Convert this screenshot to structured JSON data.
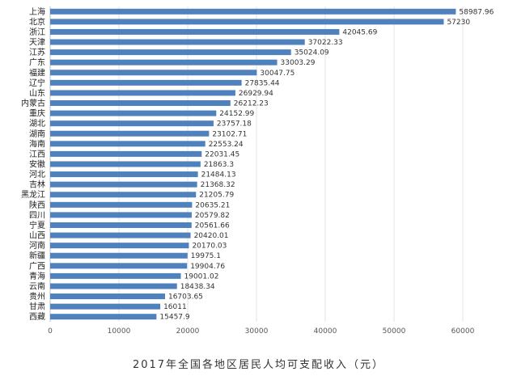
{
  "caption": "2017年全国各地区居民人均可支配收入（元）",
  "chart_data": {
    "type": "bar",
    "orientation": "horizontal",
    "title": "2017年全国各地区居民人均可支配收入（元）",
    "xlabel": "",
    "ylabel": "",
    "xlim": [
      0,
      60000
    ],
    "xticks": [
      0,
      10000,
      20000,
      30000,
      40000,
      50000,
      60000
    ],
    "grid": true,
    "categories": [
      "上海",
      "北京",
      "浙江",
      "天津",
      "江苏",
      "广东",
      "福建",
      "辽宁",
      "山东",
      "内蒙古",
      "重庆",
      "湖北",
      "湖南",
      "海南",
      "江西",
      "安徽",
      "河北",
      "吉林",
      "黑龙江",
      "陕西",
      "四川",
      "宁夏",
      "山西",
      "河南",
      "新疆",
      "广西",
      "青海",
      "云南",
      "贵州",
      "甘肃",
      "西藏"
    ],
    "values": [
      58987.96,
      57230,
      42045.69,
      37022.33,
      35024.09,
      33003.29,
      30047.75,
      27835.44,
      26929.94,
      26212.23,
      24152.99,
      23757.18,
      23102.71,
      22553.24,
      22031.45,
      21863.3,
      21484.13,
      21368.32,
      21205.79,
      20635.21,
      20579.82,
      20561.66,
      20420.01,
      20170.03,
      19975.1,
      19904.76,
      19001.02,
      18438.34,
      16703.65,
      16011,
      15457.9
    ],
    "labels": [
      "58987.96",
      "57230",
      "42045.69",
      "37022.33",
      "35024.09",
      "33003.29",
      "30047.75",
      "27835.44",
      "26929.94",
      "26212.23",
      "24152.99",
      "23757.18",
      "23102.71",
      "22553.24",
      "22031.45",
      "21863.3",
      "21484.13",
      "21368.32",
      "21205.79",
      "20635.21",
      "20579.82",
      "20561.66",
      "20420.01",
      "20170.03",
      "19975.1",
      "19904.76",
      "19001.02",
      "18438.34",
      "16703.65",
      "16011",
      "15457.9"
    ],
    "bar_color": "#4f81bd"
  }
}
